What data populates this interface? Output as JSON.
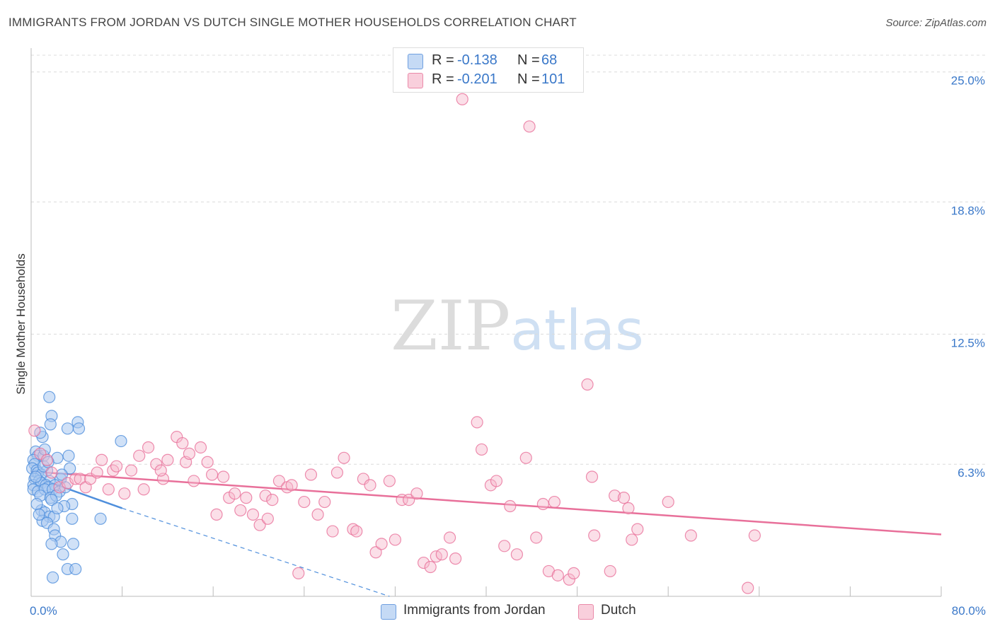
{
  "header": {
    "title": "IMMIGRANTS FROM JORDAN VS DUTCH SINGLE MOTHER HOUSEHOLDS CORRELATION CHART",
    "source": "Source: ZipAtlas.com"
  },
  "watermark": {
    "part1": "ZIP",
    "part2": "atlas"
  },
  "legend": {
    "rows": [
      {
        "r_label": "R =",
        "r_value": "-0.138",
        "n_label": "N =",
        "n_value": "68",
        "color": "#a9c8f0"
      },
      {
        "r_label": "R =",
        "r_value": "-0.201",
        "n_label": "N =",
        "n_value": "101",
        "color": "#f6b9cb"
      }
    ]
  },
  "bottom_legend": {
    "items": [
      {
        "label": "Immigrants from Jordan",
        "color": "#a9c8f0"
      },
      {
        "label": "Dutch",
        "color": "#f6b9cb"
      }
    ]
  },
  "chart_data": {
    "type": "scatter",
    "title": "IMMIGRANTS FROM JORDAN VS DUTCH SINGLE MOTHER HOUSEHOLDS CORRELATION CHART",
    "xlabel": "",
    "ylabel": "Single Mother Households",
    "xlim": [
      0,
      80
    ],
    "ylim": [
      0,
      25.8
    ],
    "x_tick_labels": [
      "0.0%",
      "80.0%"
    ],
    "y_ticks": [
      6.3,
      12.5,
      18.8,
      25.0
    ],
    "y_tick_labels": [
      "6.3%",
      "12.5%",
      "18.8%",
      "25.0%"
    ],
    "grid": true,
    "series": [
      {
        "name": "Immigrants from Jordan",
        "color": "#4f8fdc",
        "fill": "#a9c8f0",
        "points": [
          [
            1.6,
            9.5
          ],
          [
            1.8,
            8.6
          ],
          [
            1.7,
            8.2
          ],
          [
            4.1,
            8.3
          ],
          [
            3.2,
            8.0
          ],
          [
            4.2,
            8.0
          ],
          [
            1.0,
            7.6
          ],
          [
            0.8,
            7.8
          ],
          [
            7.9,
            7.4
          ],
          [
            0.4,
            6.9
          ],
          [
            0.6,
            6.7
          ],
          [
            1.1,
            6.7
          ],
          [
            0.2,
            6.5
          ],
          [
            3.3,
            6.7
          ],
          [
            2.3,
            6.6
          ],
          [
            0.3,
            6.3
          ],
          [
            0.1,
            6.1
          ],
          [
            0.5,
            6.0
          ],
          [
            1.4,
            6.0
          ],
          [
            3.4,
            6.1
          ],
          [
            0.6,
            5.9
          ],
          [
            0.9,
            5.8
          ],
          [
            0.3,
            5.6
          ],
          [
            2.6,
            5.6
          ],
          [
            0.7,
            5.5
          ],
          [
            1.6,
            5.5
          ],
          [
            0.2,
            5.3
          ],
          [
            0.9,
            5.4
          ],
          [
            1.3,
            5.3
          ],
          [
            1.5,
            5.2
          ],
          [
            2.1,
            5.3
          ],
          [
            0.2,
            5.1
          ],
          [
            0.6,
            5.0
          ],
          [
            1.2,
            5.1
          ],
          [
            1.9,
            5.1
          ],
          [
            2.5,
            5.0
          ],
          [
            0.8,
            4.8
          ],
          [
            1.7,
            4.7
          ],
          [
            2.2,
            4.8
          ],
          [
            3.6,
            4.4
          ],
          [
            2.9,
            4.3
          ],
          [
            0.9,
            4.1
          ],
          [
            1.2,
            4.0
          ],
          [
            1.6,
            3.8
          ],
          [
            2.0,
            3.8
          ],
          [
            3.6,
            3.7
          ],
          [
            6.1,
            3.7
          ],
          [
            1.0,
            3.6
          ],
          [
            1.4,
            3.5
          ],
          [
            2.0,
            3.2
          ],
          [
            2.1,
            2.9
          ],
          [
            2.6,
            2.6
          ],
          [
            1.8,
            2.5
          ],
          [
            3.7,
            2.5
          ],
          [
            2.8,
            2.0
          ],
          [
            3.2,
            1.3
          ],
          [
            3.9,
            1.3
          ],
          [
            1.9,
            0.9
          ],
          [
            1.2,
            7.0
          ],
          [
            0.5,
            4.4
          ],
          [
            2.7,
            5.8
          ],
          [
            1.1,
            6.2
          ],
          [
            0.4,
            5.7
          ],
          [
            1.8,
            4.6
          ],
          [
            2.3,
            4.2
          ],
          [
            0.7,
            3.9
          ],
          [
            1.5,
            6.4
          ],
          [
            3.0,
            5.2
          ]
        ],
        "trend_solid": {
          "x": [
            0,
            8
          ],
          "y": [
            5.75,
            4.2
          ]
        },
        "trend_dashed": {
          "x": [
            8,
            31.5
          ],
          "y": [
            4.2,
            0
          ]
        }
      },
      {
        "name": "Dutch",
        "color": "#e8709a",
        "fill": "#f6b9cb",
        "points": [
          [
            0.3,
            7.9
          ],
          [
            0.8,
            6.8
          ],
          [
            1.4,
            6.5
          ],
          [
            1.8,
            5.9
          ],
          [
            2.5,
            5.2
          ],
          [
            3.2,
            5.4
          ],
          [
            3.9,
            5.6
          ],
          [
            4.3,
            5.6
          ],
          [
            4.8,
            5.2
          ],
          [
            5.2,
            5.6
          ],
          [
            5.8,
            5.9
          ],
          [
            6.2,
            6.5
          ],
          [
            6.8,
            5.1
          ],
          [
            7.2,
            6.0
          ],
          [
            7.5,
            6.2
          ],
          [
            8.2,
            4.9
          ],
          [
            8.8,
            6.0
          ],
          [
            9.5,
            6.7
          ],
          [
            9.9,
            5.1
          ],
          [
            10.3,
            7.1
          ],
          [
            11.0,
            6.3
          ],
          [
            11.6,
            5.6
          ],
          [
            12.0,
            6.5
          ],
          [
            12.8,
            7.6
          ],
          [
            13.3,
            7.3
          ],
          [
            13.6,
            6.4
          ],
          [
            13.9,
            6.8
          ],
          [
            14.3,
            5.5
          ],
          [
            14.9,
            7.1
          ],
          [
            15.5,
            6.4
          ],
          [
            15.9,
            5.8
          ],
          [
            16.3,
            3.9
          ],
          [
            16.9,
            5.7
          ],
          [
            17.4,
            4.7
          ],
          [
            17.9,
            4.9
          ],
          [
            18.4,
            4.1
          ],
          [
            18.9,
            4.7
          ],
          [
            19.5,
            3.9
          ],
          [
            20.1,
            3.4
          ],
          [
            20.6,
            4.8
          ],
          [
            21.2,
            4.6
          ],
          [
            21.8,
            5.5
          ],
          [
            22.5,
            5.2
          ],
          [
            22.9,
            5.3
          ],
          [
            23.5,
            1.1
          ],
          [
            24.0,
            4.5
          ],
          [
            24.6,
            5.8
          ],
          [
            25.2,
            3.9
          ],
          [
            25.8,
            4.5
          ],
          [
            26.5,
            3.1
          ],
          [
            26.9,
            5.9
          ],
          [
            27.5,
            6.6
          ],
          [
            28.3,
            3.2
          ],
          [
            28.6,
            3.1
          ],
          [
            29.2,
            5.6
          ],
          [
            29.8,
            5.3
          ],
          [
            30.3,
            2.1
          ],
          [
            30.8,
            2.5
          ],
          [
            31.5,
            5.5
          ],
          [
            32.0,
            2.7
          ],
          [
            32.6,
            4.6
          ],
          [
            33.2,
            4.6
          ],
          [
            33.9,
            4.9
          ],
          [
            34.5,
            1.6
          ],
          [
            35.1,
            1.4
          ],
          [
            35.6,
            1.9
          ],
          [
            36.1,
            2.0
          ],
          [
            36.8,
            2.8
          ],
          [
            37.3,
            1.8
          ],
          [
            37.9,
            23.7
          ],
          [
            39.2,
            8.3
          ],
          [
            39.6,
            7.0
          ],
          [
            40.4,
            5.3
          ],
          [
            40.9,
            5.5
          ],
          [
            41.6,
            2.4
          ],
          [
            42.1,
            4.3
          ],
          [
            42.7,
            2.0
          ],
          [
            43.5,
            6.6
          ],
          [
            43.8,
            22.4
          ],
          [
            44.4,
            2.8
          ],
          [
            45.0,
            4.4
          ],
          [
            45.5,
            1.2
          ],
          [
            46.0,
            4.5
          ],
          [
            46.3,
            1.0
          ],
          [
            47.3,
            0.8
          ],
          [
            47.7,
            1.1
          ],
          [
            48.9,
            10.1
          ],
          [
            49.3,
            5.7
          ],
          [
            49.5,
            2.9
          ],
          [
            50.9,
            1.2
          ],
          [
            51.3,
            4.8
          ],
          [
            52.1,
            4.7
          ],
          [
            52.5,
            4.2
          ],
          [
            52.8,
            2.7
          ],
          [
            53.3,
            3.2
          ],
          [
            56.0,
            4.5
          ],
          [
            58.0,
            2.9
          ],
          [
            63.0,
            0.4
          ],
          [
            63.6,
            2.9
          ],
          [
            11.4,
            6.0
          ],
          [
            20.8,
            3.7
          ]
        ],
        "trend_solid": {
          "x": [
            0,
            80
          ],
          "y": [
            5.95,
            2.95
          ]
        }
      }
    ]
  }
}
